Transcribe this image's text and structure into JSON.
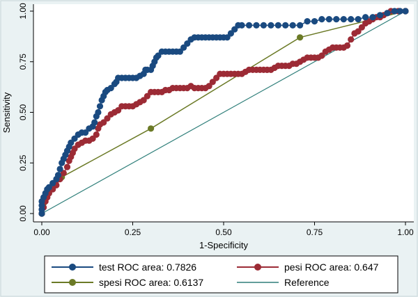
{
  "chart_data": {
    "type": "line",
    "title": "",
    "xlabel": "1-Specificity",
    "ylabel": "Sensitivity",
    "xlim": [
      0,
      1
    ],
    "ylim": [
      0,
      1
    ],
    "xticks": [
      "0.00",
      "0.25",
      "0.50",
      "0.75",
      "1.00"
    ],
    "yticks": [
      "0.00",
      "0.25",
      "0.50",
      "0.75",
      "1.00"
    ],
    "grid": false,
    "legend_placement": "bottom",
    "series": [
      {
        "name": "test",
        "legend_label": "test ROC area: 0.7826",
        "color": "#1a4a80",
        "marker": "circle",
        "points": [
          [
            0,
            0
          ],
          [
            0,
            0.02
          ],
          [
            0,
            0.04
          ],
          [
            0,
            0.06
          ],
          [
            0.005,
            0.08
          ],
          [
            0.01,
            0.1
          ],
          [
            0.015,
            0.12
          ],
          [
            0.02,
            0.13
          ],
          [
            0.03,
            0.15
          ],
          [
            0.04,
            0.17
          ],
          [
            0.045,
            0.19
          ],
          [
            0.05,
            0.22
          ],
          [
            0.055,
            0.25
          ],
          [
            0.06,
            0.27
          ],
          [
            0.065,
            0.29
          ],
          [
            0.07,
            0.31
          ],
          [
            0.075,
            0.33
          ],
          [
            0.08,
            0.35
          ],
          [
            0.09,
            0.37
          ],
          [
            0.1,
            0.39
          ],
          [
            0.11,
            0.4
          ],
          [
            0.12,
            0.4
          ],
          [
            0.13,
            0.42
          ],
          [
            0.14,
            0.43
          ],
          [
            0.145,
            0.45
          ],
          [
            0.15,
            0.48
          ],
          [
            0.155,
            0.5
          ],
          [
            0.16,
            0.53
          ],
          [
            0.165,
            0.56
          ],
          [
            0.17,
            0.58
          ],
          [
            0.175,
            0.6
          ],
          [
            0.18,
            0.61
          ],
          [
            0.19,
            0.62
          ],
          [
            0.2,
            0.64
          ],
          [
            0.205,
            0.65
          ],
          [
            0.21,
            0.67
          ],
          [
            0.22,
            0.67
          ],
          [
            0.23,
            0.67
          ],
          [
            0.24,
            0.67
          ],
          [
            0.25,
            0.67
          ],
          [
            0.26,
            0.67
          ],
          [
            0.27,
            0.68
          ],
          [
            0.28,
            0.69
          ],
          [
            0.285,
            0.71
          ],
          [
            0.29,
            0.71
          ],
          [
            0.3,
            0.71
          ],
          [
            0.305,
            0.73
          ],
          [
            0.31,
            0.75
          ],
          [
            0.315,
            0.77
          ],
          [
            0.32,
            0.78
          ],
          [
            0.33,
            0.8
          ],
          [
            0.34,
            0.8
          ],
          [
            0.35,
            0.8
          ],
          [
            0.36,
            0.8
          ],
          [
            0.37,
            0.8
          ],
          [
            0.38,
            0.8
          ],
          [
            0.39,
            0.82
          ],
          [
            0.4,
            0.84
          ],
          [
            0.41,
            0.86
          ],
          [
            0.42,
            0.87
          ],
          [
            0.43,
            0.87
          ],
          [
            0.44,
            0.87
          ],
          [
            0.45,
            0.87
          ],
          [
            0.46,
            0.87
          ],
          [
            0.47,
            0.87
          ],
          [
            0.48,
            0.87
          ],
          [
            0.49,
            0.87
          ],
          [
            0.5,
            0.87
          ],
          [
            0.51,
            0.87
          ],
          [
            0.52,
            0.89
          ],
          [
            0.53,
            0.91
          ],
          [
            0.54,
            0.93
          ],
          [
            0.55,
            0.93
          ],
          [
            0.57,
            0.93
          ],
          [
            0.59,
            0.93
          ],
          [
            0.61,
            0.93
          ],
          [
            0.63,
            0.93
          ],
          [
            0.65,
            0.93
          ],
          [
            0.67,
            0.93
          ],
          [
            0.69,
            0.93
          ],
          [
            0.71,
            0.93
          ],
          [
            0.73,
            0.95
          ],
          [
            0.75,
            0.95
          ],
          [
            0.77,
            0.96
          ],
          [
            0.79,
            0.96
          ],
          [
            0.81,
            0.96
          ],
          [
            0.83,
            0.96
          ],
          [
            0.85,
            0.96
          ],
          [
            0.87,
            0.96
          ],
          [
            0.89,
            0.97
          ],
          [
            0.91,
            0.97
          ],
          [
            0.93,
            0.98
          ],
          [
            0.95,
            0.99
          ],
          [
            0.97,
            1.0
          ],
          [
            0.985,
            1.0
          ],
          [
            1.0,
            1.0
          ]
        ]
      },
      {
        "name": "pesi",
        "legend_label": "pesi ROC area: 0.647",
        "color": "#9c2b35",
        "marker": "circle",
        "points": [
          [
            0,
            0
          ],
          [
            0.005,
            0.03
          ],
          [
            0.01,
            0.06
          ],
          [
            0.015,
            0.08
          ],
          [
            0.02,
            0.1
          ],
          [
            0.03,
            0.12
          ],
          [
            0.04,
            0.14
          ],
          [
            0.05,
            0.17
          ],
          [
            0.06,
            0.2
          ],
          [
            0.07,
            0.23
          ],
          [
            0.075,
            0.26
          ],
          [
            0.08,
            0.28
          ],
          [
            0.085,
            0.3
          ],
          [
            0.09,
            0.32
          ],
          [
            0.1,
            0.34
          ],
          [
            0.11,
            0.35
          ],
          [
            0.12,
            0.36
          ],
          [
            0.13,
            0.36
          ],
          [
            0.14,
            0.37
          ],
          [
            0.15,
            0.39
          ],
          [
            0.155,
            0.42
          ],
          [
            0.16,
            0.44
          ],
          [
            0.17,
            0.45
          ],
          [
            0.18,
            0.47
          ],
          [
            0.19,
            0.49
          ],
          [
            0.2,
            0.5
          ],
          [
            0.21,
            0.51
          ],
          [
            0.22,
            0.53
          ],
          [
            0.23,
            0.53
          ],
          [
            0.24,
            0.53
          ],
          [
            0.25,
            0.53
          ],
          [
            0.26,
            0.54
          ],
          [
            0.27,
            0.55
          ],
          [
            0.28,
            0.56
          ],
          [
            0.29,
            0.58
          ],
          [
            0.3,
            0.6
          ],
          [
            0.31,
            0.6
          ],
          [
            0.32,
            0.6
          ],
          [
            0.33,
            0.6
          ],
          [
            0.34,
            0.61
          ],
          [
            0.35,
            0.61
          ],
          [
            0.36,
            0.62
          ],
          [
            0.37,
            0.62
          ],
          [
            0.38,
            0.62
          ],
          [
            0.39,
            0.62
          ],
          [
            0.4,
            0.62
          ],
          [
            0.41,
            0.63
          ],
          [
            0.42,
            0.62
          ],
          [
            0.43,
            0.62
          ],
          [
            0.44,
            0.62
          ],
          [
            0.45,
            0.62
          ],
          [
            0.46,
            0.63
          ],
          [
            0.47,
            0.65
          ],
          [
            0.48,
            0.67
          ],
          [
            0.49,
            0.69
          ],
          [
            0.5,
            0.69
          ],
          [
            0.51,
            0.69
          ],
          [
            0.52,
            0.69
          ],
          [
            0.53,
            0.69
          ],
          [
            0.54,
            0.69
          ],
          [
            0.55,
            0.69
          ],
          [
            0.56,
            0.7
          ],
          [
            0.57,
            0.71
          ],
          [
            0.58,
            0.71
          ],
          [
            0.59,
            0.71
          ],
          [
            0.6,
            0.71
          ],
          [
            0.61,
            0.71
          ],
          [
            0.62,
            0.71
          ],
          [
            0.63,
            0.71
          ],
          [
            0.64,
            0.72
          ],
          [
            0.65,
            0.73
          ],
          [
            0.66,
            0.73
          ],
          [
            0.67,
            0.73
          ],
          [
            0.68,
            0.73
          ],
          [
            0.69,
            0.74
          ],
          [
            0.7,
            0.74
          ],
          [
            0.71,
            0.75
          ],
          [
            0.72,
            0.76
          ],
          [
            0.73,
            0.77
          ],
          [
            0.74,
            0.77
          ],
          [
            0.75,
            0.77
          ],
          [
            0.76,
            0.77
          ],
          [
            0.77,
            0.78
          ],
          [
            0.78,
            0.8
          ],
          [
            0.79,
            0.81
          ],
          [
            0.8,
            0.82
          ],
          [
            0.81,
            0.82
          ],
          [
            0.82,
            0.82
          ],
          [
            0.83,
            0.82
          ],
          [
            0.84,
            0.83
          ],
          [
            0.85,
            0.86
          ],
          [
            0.86,
            0.89
          ],
          [
            0.87,
            0.9
          ],
          [
            0.88,
            0.92
          ],
          [
            0.89,
            0.94
          ],
          [
            0.9,
            0.95
          ],
          [
            0.91,
            0.96
          ],
          [
            0.92,
            0.97
          ],
          [
            0.93,
            0.97
          ],
          [
            0.94,
            0.98
          ],
          [
            0.95,
            0.99
          ],
          [
            0.96,
            1.0
          ],
          [
            0.98,
            1.0
          ],
          [
            1.0,
            1.0
          ]
        ]
      },
      {
        "name": "spesi",
        "legend_label": "spesi ROC area: 0.6137",
        "color": "#6b7a26",
        "marker": "circle",
        "points": [
          [
            0,
            0
          ],
          [
            0.005,
            0.05
          ],
          [
            0.055,
            0.18
          ],
          [
            0.3,
            0.42
          ],
          [
            0.71,
            0.87
          ],
          [
            1.0,
            1.0
          ]
        ]
      },
      {
        "name": "reference",
        "legend_label": "Reference",
        "color": "#2f7f7a",
        "marker": "none",
        "points": [
          [
            0,
            0
          ],
          [
            1,
            1
          ]
        ]
      }
    ]
  }
}
